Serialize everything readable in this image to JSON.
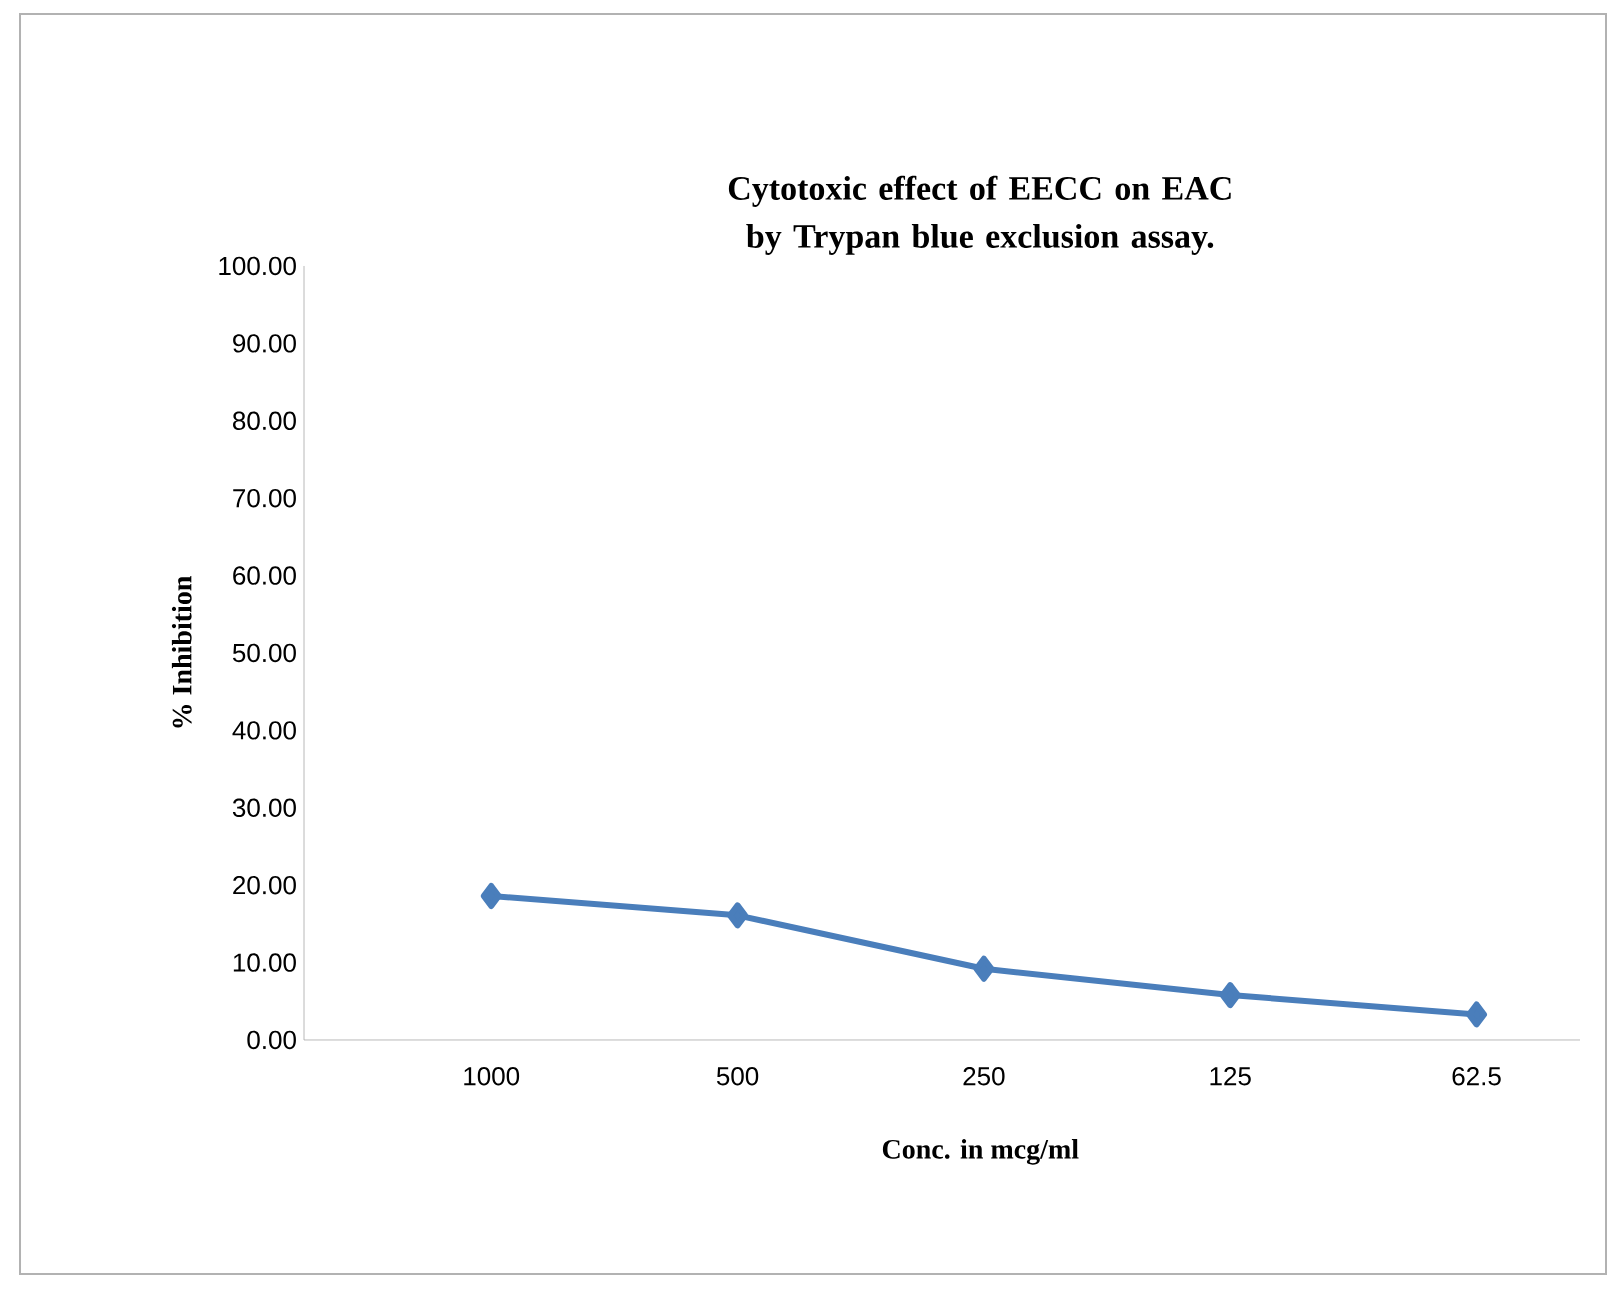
{
  "chart_data": {
    "type": "line",
    "title": "Cytotoxic effect of  EECC on EAC by Trypan blue exclusion assay.",
    "xlabel": "Conc. in mcg/ml",
    "ylabel": "% Inhibition",
    "categories": [
      "1000",
      "500",
      "250",
      "125",
      "62.5"
    ],
    "values": [
      18.6,
      16.1,
      9.2,
      5.8,
      3.3
    ],
    "color": "#4a7ebb",
    "marker": "diamond",
    "ylim": [
      0,
      100
    ],
    "yticks": [
      {
        "value": 0,
        "label": "0.00"
      },
      {
        "value": 10,
        "label": "10.00"
      },
      {
        "value": 20,
        "label": "20.00"
      },
      {
        "value": 30,
        "label": "30.00"
      },
      {
        "value": 40,
        "label": "40.00"
      },
      {
        "value": 50,
        "label": "50.00"
      },
      {
        "value": 60,
        "label": "60.00"
      },
      {
        "value": 70,
        "label": "70.00"
      },
      {
        "value": 80,
        "label": "80.00"
      },
      {
        "value": 90,
        "label": "90.00"
      },
      {
        "value": 100,
        "label": "100.00"
      }
    ]
  }
}
